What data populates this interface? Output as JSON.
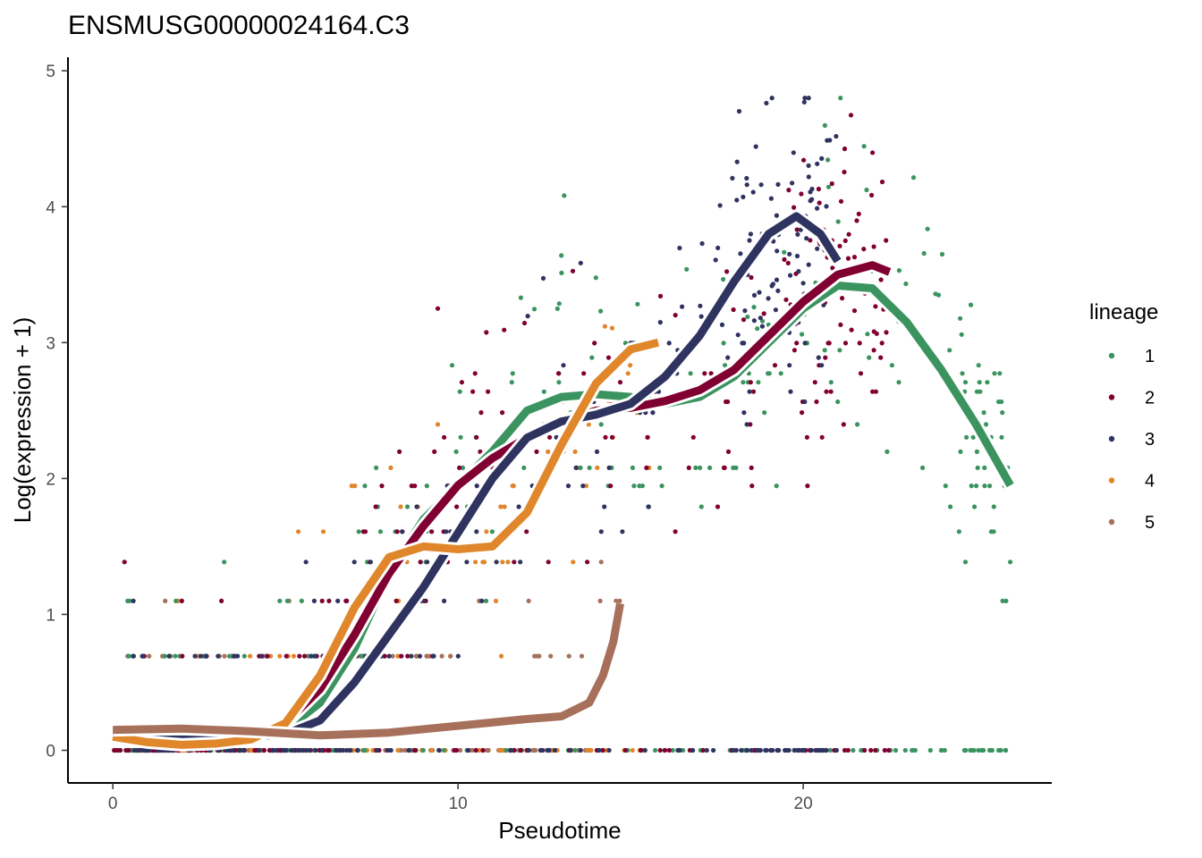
{
  "chart_data": {
    "type": "scatter",
    "title": "ENSMUSG00000024164.C3",
    "xlabel": "Pseudotime",
    "ylabel": "Log(expression + 1)",
    "xlim": [
      -1.3,
      27.2
    ],
    "ylim": [
      -0.24,
      5.1
    ],
    "x_ticks": [
      0,
      10,
      20
    ],
    "y_ticks": [
      0,
      1,
      2,
      3,
      4,
      5
    ],
    "grid": false,
    "legend": {
      "title": "lineage",
      "position": "right"
    },
    "series": [
      {
        "name": "1",
        "color": "#3b9460",
        "x_range": [
          0,
          26
        ],
        "smooth": [
          [
            0,
            0.15
          ],
          [
            2,
            0.15
          ],
          [
            4,
            0.12
          ],
          [
            5,
            0.15
          ],
          [
            6,
            0.35
          ],
          [
            7,
            0.75
          ],
          [
            8,
            1.3
          ],
          [
            9,
            1.7
          ],
          [
            10,
            1.95
          ],
          [
            11,
            2.2
          ],
          [
            12,
            2.5
          ],
          [
            13,
            2.6
          ],
          [
            14,
            2.62
          ],
          [
            15,
            2.6
          ],
          [
            16,
            2.55
          ],
          [
            17,
            2.6
          ],
          [
            18,
            2.75
          ],
          [
            19,
            3.0
          ],
          [
            20,
            3.25
          ],
          [
            21,
            3.42
          ],
          [
            22,
            3.4
          ],
          [
            23,
            3.15
          ],
          [
            24,
            2.8
          ],
          [
            25,
            2.4
          ],
          [
            26,
            1.95
          ]
        ]
      },
      {
        "name": "2",
        "color": "#800031",
        "x_range": [
          0,
          22.5
        ],
        "smooth": [
          [
            0,
            0.12
          ],
          [
            2,
            0.13
          ],
          [
            4,
            0.12
          ],
          [
            5,
            0.2
          ],
          [
            6,
            0.45
          ],
          [
            7,
            0.85
          ],
          [
            8,
            1.3
          ],
          [
            9,
            1.65
          ],
          [
            10,
            1.95
          ],
          [
            11,
            2.15
          ],
          [
            12,
            2.3
          ],
          [
            13,
            2.42
          ],
          [
            14,
            2.5
          ],
          [
            15,
            2.52
          ],
          [
            16,
            2.57
          ],
          [
            17,
            2.65
          ],
          [
            18,
            2.8
          ],
          [
            19,
            3.05
          ],
          [
            20,
            3.3
          ],
          [
            21,
            3.5
          ],
          [
            22,
            3.57
          ],
          [
            22.5,
            3.52
          ]
        ]
      },
      {
        "name": "3",
        "color": "#2f3360",
        "x_range": [
          0,
          21
        ],
        "smooth": [
          [
            0,
            0.1
          ],
          [
            2,
            0.08
          ],
          [
            4,
            0.1
          ],
          [
            5,
            0.12
          ],
          [
            6,
            0.22
          ],
          [
            7,
            0.5
          ],
          [
            8,
            0.85
          ],
          [
            9,
            1.2
          ],
          [
            10,
            1.6
          ],
          [
            11,
            2.0
          ],
          [
            12,
            2.3
          ],
          [
            13,
            2.42
          ],
          [
            14,
            2.47
          ],
          [
            15,
            2.55
          ],
          [
            16,
            2.75
          ],
          [
            17,
            3.05
          ],
          [
            18,
            3.45
          ],
          [
            19,
            3.8
          ],
          [
            19.8,
            3.93
          ],
          [
            20.5,
            3.8
          ],
          [
            21,
            3.6
          ]
        ]
      },
      {
        "name": "4",
        "color": "#e0862b",
        "x_range": [
          0,
          15.8
        ],
        "smooth": [
          [
            0,
            0.1
          ],
          [
            1,
            0.06
          ],
          [
            2,
            0.04
          ],
          [
            3,
            0.05
          ],
          [
            4,
            0.08
          ],
          [
            5,
            0.2
          ],
          [
            6,
            0.55
          ],
          [
            7,
            1.05
          ],
          [
            8,
            1.42
          ],
          [
            9,
            1.5
          ],
          [
            10,
            1.48
          ],
          [
            11,
            1.5
          ],
          [
            12,
            1.75
          ],
          [
            13,
            2.25
          ],
          [
            14,
            2.7
          ],
          [
            15,
            2.95
          ],
          [
            15.8,
            3.0
          ]
        ]
      },
      {
        "name": "5",
        "color": "#a6705b",
        "x_range": [
          0,
          14.7
        ],
        "smooth": [
          [
            0,
            0.15
          ],
          [
            2,
            0.16
          ],
          [
            4,
            0.14
          ],
          [
            6,
            0.11
          ],
          [
            8,
            0.13
          ],
          [
            10,
            0.18
          ],
          [
            12,
            0.23
          ],
          [
            13,
            0.25
          ],
          [
            13.8,
            0.35
          ],
          [
            14.2,
            0.55
          ],
          [
            14.5,
            0.8
          ],
          [
            14.7,
            1.08
          ]
        ]
      }
    ],
    "point_levels": [
      0,
      0.693,
      1.099,
      1.386,
      1.609,
      1.792,
      1.946,
      2.079,
      2.197,
      2.303,
      2.398,
      2.485,
      2.565,
      2.639,
      2.708,
      2.773,
      2.833,
      2.89,
      2.944,
      2.996
    ]
  }
}
